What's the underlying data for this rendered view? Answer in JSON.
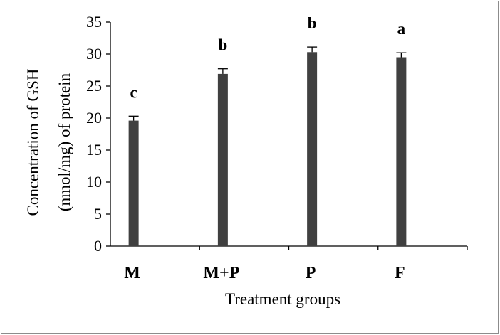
{
  "chart_data": {
    "type": "bar",
    "categories": [
      "M",
      "M+P",
      "P",
      "F"
    ],
    "values": [
      19.6,
      26.9,
      30.3,
      29.5
    ],
    "errors": [
      0.7,
      0.8,
      0.8,
      0.7
    ],
    "significance_letters": [
      "c",
      "b",
      "b",
      "a"
    ],
    "title": "",
    "xlabel": "Treatment groups",
    "ylabel_line1": "Concentration of GSH",
    "ylabel_line2": "(nmol/mg) of protein",
    "ylim": [
      0,
      35
    ],
    "yticks": [
      0,
      5,
      10,
      15,
      20,
      25,
      30,
      35
    ],
    "bar_color": "#404040",
    "grid": false,
    "legend": "none"
  }
}
